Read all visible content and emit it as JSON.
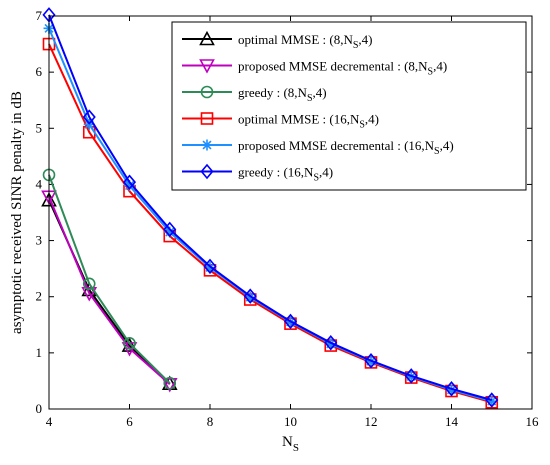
{
  "chart_data": {
    "type": "line",
    "xlabel": "N",
    "xlabel_sub": "S",
    "ylabel": "asymptotic received SINR penalty in dB",
    "xlim": [
      4,
      16
    ],
    "ylim": [
      0,
      7
    ],
    "x_ticks": [
      4,
      6,
      8,
      10,
      12,
      14,
      16
    ],
    "y_ticks": [
      0,
      1,
      2,
      3,
      4,
      5,
      6,
      7
    ],
    "grid": false,
    "legend_position": "top-right",
    "series": [
      {
        "label_main": "optimal MMSE : (8,N",
        "label_sub": "S",
        "label_tail": ",4)",
        "color": "#000000",
        "marker": "triangle-up",
        "x": [
          4,
          5,
          6,
          7
        ],
        "y": [
          3.72,
          2.12,
          1.13,
          0.45
        ]
      },
      {
        "label_main": "proposed MMSE decremental : (8,N",
        "label_sub": "S",
        "label_tail": ",4)",
        "color": "#bf00bf",
        "marker": "triangle-down",
        "x": [
          4,
          5,
          6,
          7
        ],
        "y": [
          3.78,
          2.06,
          1.08,
          0.44
        ]
      },
      {
        "label_main": "greedy : (8,N",
        "label_sub": "S",
        "label_tail": ",4)",
        "color": "#2e8b57",
        "marker": "circle",
        "x": [
          4,
          5,
          6,
          7
        ],
        "y": [
          4.17,
          2.23,
          1.17,
          0.46
        ]
      },
      {
        "label_main": "optimal MMSE : (16,N",
        "label_sub": "S",
        "label_tail": ",4)",
        "color": "#ff0000",
        "marker": "square",
        "x": [
          4,
          5,
          6,
          7,
          8,
          9,
          10,
          11,
          12,
          13,
          14,
          15
        ],
        "y": [
          6.5,
          4.93,
          3.88,
          3.08,
          2.47,
          1.95,
          1.52,
          1.13,
          0.83,
          0.56,
          0.32,
          0.12
        ]
      },
      {
        "label_main": "proposed MMSE decremental : (16,N",
        "label_sub": "S",
        "label_tail": ",4)",
        "color": "#1e90ff",
        "marker": "asterisk",
        "x": [
          4,
          5,
          6,
          7,
          8,
          9,
          10,
          11,
          12,
          13,
          14,
          15
        ],
        "y": [
          6.78,
          5.07,
          3.98,
          3.15,
          2.52,
          1.99,
          1.55,
          1.16,
          0.85,
          0.58,
          0.34,
          0.14
        ]
      },
      {
        "label_main": "greedy : (16,N",
        "label_sub": "S",
        "label_tail": ",4)",
        "color": "#0000ff",
        "marker": "diamond",
        "x": [
          4,
          5,
          6,
          7,
          8,
          9,
          10,
          11,
          12,
          13,
          14,
          15
        ],
        "y": [
          7.02,
          5.2,
          4.04,
          3.2,
          2.54,
          2.01,
          1.56,
          1.18,
          0.86,
          0.59,
          0.36,
          0.16
        ]
      }
    ]
  }
}
